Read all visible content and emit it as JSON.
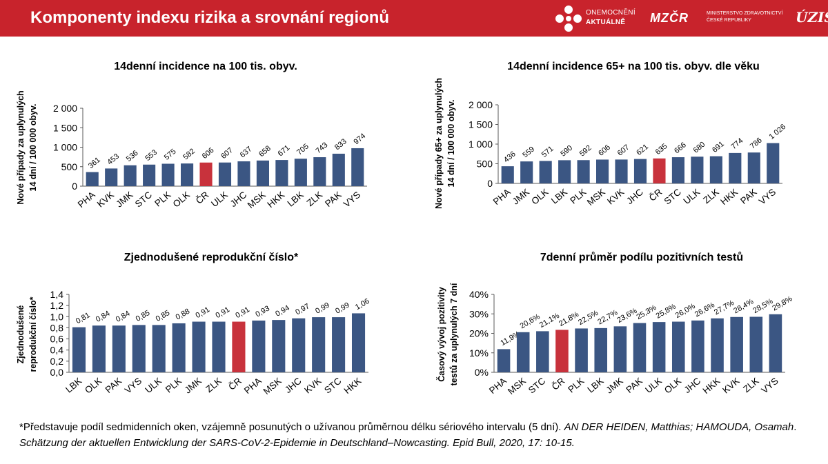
{
  "header": {
    "title": "Komponenty indexu rizika a srovnání regionů",
    "logo_oa_line1": "ONEMOCNĚNÍ",
    "logo_oa_line2": "AKTUÁLNĚ",
    "logo_mz_mark": "MZČR",
    "logo_mz_line1": "MINISTERSTVO ZDRAVOTNICTVÍ",
    "logo_mz_line2": "ČESKÉ REPUBLIKY",
    "logo_uzis": "ÚZIS",
    "color": "#C8232C"
  },
  "colors": {
    "bar": "#3B5683",
    "highlight": "#C8323C",
    "axis": "#595959",
    "text": "#000000"
  },
  "chart_data": [
    {
      "type": "bar",
      "title": "14denní incidence na 100 tis. obyv.",
      "ylabel_lines": [
        "Nové případy za uplynulých",
        "14 dní / 100 000 obyv."
      ],
      "categories": [
        "PHA",
        "KVK",
        "JMK",
        "STC",
        "PLK",
        "OLK",
        "ČR",
        "ULK",
        "JHC",
        "MSK",
        "HKK",
        "LBK",
        "ZLK",
        "PAK",
        "VYS"
      ],
      "values": [
        361,
        453,
        536,
        553,
        575,
        582,
        606,
        607,
        637,
        658,
        671,
        705,
        743,
        833,
        974
      ],
      "labels": [
        "361",
        "453",
        "536",
        "553",
        "575",
        "582",
        "606",
        "607",
        "637",
        "658",
        "671",
        "705",
        "743",
        "833",
        "974"
      ],
      "yticks": [
        0,
        500,
        1000,
        1500,
        2000
      ],
      "ytick_labels": [
        "0",
        "500",
        "1 000",
        "1 500",
        "2 000"
      ],
      "ylim": [
        0,
        2000
      ],
      "highlight": "ČR",
      "grid": false
    },
    {
      "type": "bar",
      "title": "14denní incidence 65+ na 100 tis. obyv. dle věku",
      "ylabel_lines": [
        "Nové případy 65+ za uplynulých",
        "14 dní / 100 000 obyv."
      ],
      "categories": [
        "PHA",
        "JMK",
        "OLK",
        "LBK",
        "PLK",
        "MSK",
        "KVK",
        "JHC",
        "ČR",
        "STC",
        "ULK",
        "ZLK",
        "HKK",
        "PAK",
        "VYS"
      ],
      "values": [
        436,
        559,
        571,
        590,
        592,
        606,
        607,
        621,
        635,
        666,
        680,
        691,
        774,
        786,
        1026
      ],
      "labels": [
        "436",
        "559",
        "571",
        "590",
        "592",
        "606",
        "607",
        "621",
        "635",
        "666",
        "680",
        "691",
        "774",
        "786",
        "1 026"
      ],
      "yticks": [
        0,
        500,
        1000,
        1500,
        2000
      ],
      "ytick_labels": [
        "0",
        "500",
        "1 000",
        "1 500",
        "2 000"
      ],
      "ylim": [
        0,
        2000
      ],
      "highlight": "ČR",
      "grid": false
    },
    {
      "type": "bar",
      "title": "Zjednodušené reprodukční číslo*",
      "ylabel_lines": [
        "Zjednodušené",
        "reprodukční číslo*"
      ],
      "categories": [
        "LBK",
        "OLK",
        "PAK",
        "VYS",
        "ULK",
        "PLK",
        "JMK",
        "ZLK",
        "ČR",
        "PHA",
        "MSK",
        "JHC",
        "KVK",
        "STC",
        "HKK"
      ],
      "values": [
        0.81,
        0.84,
        0.84,
        0.85,
        0.85,
        0.88,
        0.91,
        0.91,
        0.91,
        0.93,
        0.94,
        0.97,
        0.99,
        0.99,
        1.06
      ],
      "labels": [
        "0,81",
        "0,84",
        "0,84",
        "0,85",
        "0,85",
        "0,88",
        "0,91",
        "0,91",
        "0,91",
        "0,93",
        "0,94",
        "0,97",
        "0,99",
        "0,99",
        "1,06"
      ],
      "yticks": [
        0,
        0.2,
        0.4,
        0.6,
        0.8,
        1.0,
        1.2,
        1.4
      ],
      "ytick_labels": [
        "0,0",
        "0,2",
        "0,4",
        "0,6",
        "0,8",
        "1,0",
        "1,2",
        "1,4"
      ],
      "ylim": [
        0,
        1.4
      ],
      "highlight": "ČR",
      "grid": false
    },
    {
      "type": "bar",
      "title": "7denní průměr podílu pozitivních testů",
      "ylabel_lines": [
        "Časový vývoj pozitivity",
        "testů za uplynulých 7 dní"
      ],
      "categories": [
        "PHA",
        "MSK",
        "STC",
        "ČR",
        "PLK",
        "LBK",
        "JMK",
        "PAK",
        "ULK",
        "OLK",
        "JHC",
        "HKK",
        "KVK",
        "ZLK",
        "VYS"
      ],
      "values": [
        11.9,
        20.6,
        21.1,
        21.8,
        22.5,
        22.7,
        23.6,
        25.3,
        25.8,
        26.0,
        26.6,
        27.7,
        28.4,
        28.5,
        29.8
      ],
      "labels": [
        "11,9%",
        "20,6%",
        "21,1%",
        "21,8%",
        "22,5%",
        "22,7%",
        "23,6%",
        "25,3%",
        "25,8%",
        "26,0%",
        "26,6%",
        "27,7%",
        "28,4%",
        "28,5%",
        "29,8%"
      ],
      "yticks": [
        0,
        10,
        20,
        30,
        40
      ],
      "ytick_labels": [
        "0%",
        "10%",
        "20%",
        "30%",
        "40%"
      ],
      "ylim": [
        0,
        40
      ],
      "highlight": "ČR",
      "grid": false
    }
  ],
  "footnote": {
    "lead": "*Představuje podíl sedmidenních oken, vzájemně posunutých o užívanou průměrnou délku sériového intervalu (5 dní). ",
    "authors": "AN DER HEIDEN, Matthias; HAMOUDA, Osamah",
    "mid": ". ",
    "ref": "Schätzung der aktuellen Entwicklung der SARS-CoV-2-Epidemie in Deutschland–Nowcasting. Epid Bull, 2020, 17: 10-15."
  }
}
